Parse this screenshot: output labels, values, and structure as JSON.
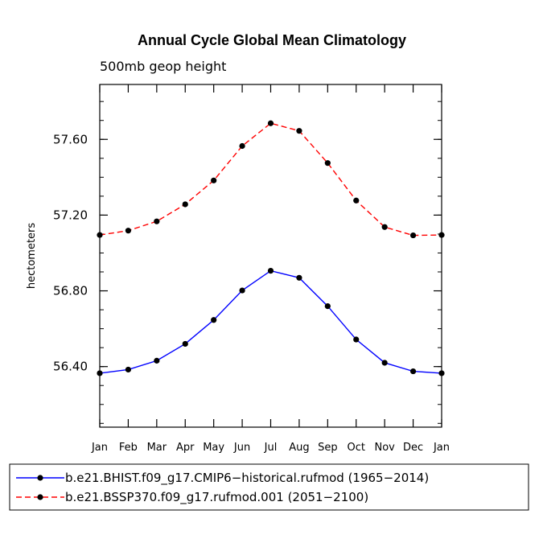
{
  "chart_data": {
    "type": "line",
    "title": "Annual Cycle Global Mean Climatology",
    "subtitle": "500mb geop height",
    "xlabel": "",
    "ylabel": "hectometers",
    "categories": [
      "Jan",
      "Feb",
      "Mar",
      "Apr",
      "May",
      "Jun",
      "Jul",
      "Aug",
      "Sep",
      "Oct",
      "Nov",
      "Dec",
      "Jan"
    ],
    "ylim": [
      56.08,
      57.89
    ],
    "yticks": [
      {
        "value": 56.4,
        "label": "56.40"
      },
      {
        "value": 56.8,
        "label": "56.80"
      },
      {
        "value": 57.2,
        "label": "57.20"
      },
      {
        "value": 57.6,
        "label": "57.60"
      }
    ],
    "yminor_step": 0.1,
    "grid": false,
    "legend_position": "bottom",
    "series": [
      {
        "name": "b.e21.BHIST.f09_g17.CMIP6−historical.rufmod (1965−2014)",
        "color": "#0000ff",
        "dash": "solid",
        "marker": "circle",
        "values": [
          56.365,
          56.384,
          56.431,
          56.52,
          56.646,
          56.802,
          56.906,
          56.869,
          56.719,
          56.543,
          56.42,
          56.375,
          56.365
        ]
      },
      {
        "name": "b.e21.BSSP370.f09_g17.rufmod.001 (2051−2100)",
        "color": "#ff0000",
        "dash": "dashed",
        "marker": "circle",
        "values": [
          57.095,
          57.118,
          57.167,
          57.257,
          57.383,
          57.565,
          57.685,
          57.645,
          57.475,
          57.277,
          57.137,
          57.093,
          57.095
        ]
      }
    ]
  }
}
